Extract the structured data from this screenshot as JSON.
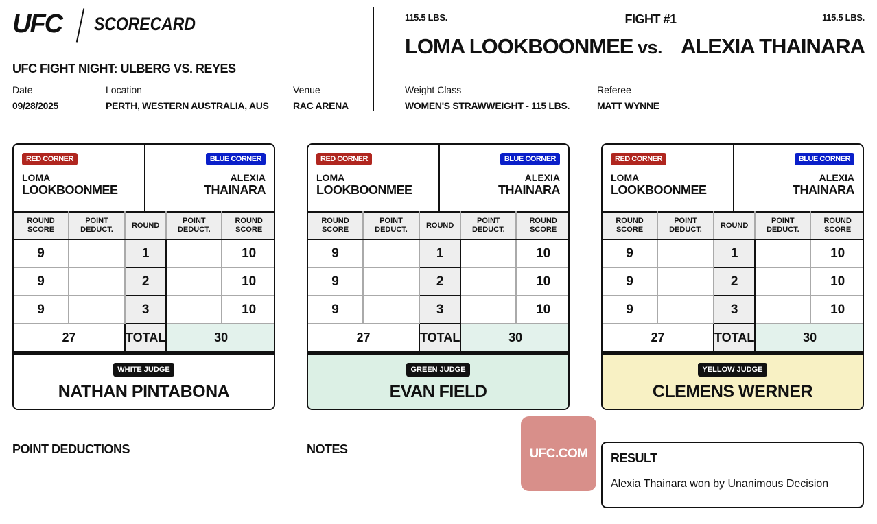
{
  "header": {
    "logo": "UFC",
    "title": "SCORECARD",
    "event": "UFC FIGHT NIGHT: ULBERG VS. REYES",
    "date_label": "Date",
    "date": "09/28/2025",
    "location_label": "Location",
    "location": "PERTH, WESTERN AUSTRALIA, AUS",
    "venue_label": "Venue",
    "venue": "RAC ARENA"
  },
  "fight": {
    "number": "FIGHT #1",
    "red_weight": "115.5 LBS.",
    "blue_weight": "115.5 LBS.",
    "red_name": "LOMA LOOKBOONMEE",
    "vs": "vs.",
    "blue_name": "ALEXIA THAINARA",
    "weight_class_label": "Weight Class",
    "weight_class": "WOMEN'S STRAWWEIGHT - 115 LBS.",
    "referee_label": "Referee",
    "referee": "MATT WYNNE"
  },
  "colors": {
    "red": "#b0261f",
    "blue": "#0a1fc9",
    "winner_bg": "#e3f2ec",
    "green_judge": "#dcf0e5",
    "yellow_judge": "#f8f1c4",
    "ufc_badge": "#d88f8a"
  },
  "labels": {
    "red_corner": "RED CORNER",
    "blue_corner": "BLUE CORNER",
    "red_first": "LOMA",
    "red_last": "LOOKBOONMEE",
    "blue_first": "ALEXIA",
    "blue_last": "THAINARA",
    "round_score": "ROUND SCORE",
    "point_deduct": "POINT DEDUCT.",
    "round": "ROUND",
    "total": "TOTAL"
  },
  "cards": [
    {
      "judge_label": "WHITE JUDGE",
      "judge": "NATHAN PINTABONA",
      "rounds": [
        {
          "n": "1",
          "red": "9",
          "blue": "10"
        },
        {
          "n": "2",
          "red": "9",
          "blue": "10"
        },
        {
          "n": "3",
          "red": "9",
          "blue": "10"
        }
      ],
      "red_total": "27",
      "blue_total": "30"
    },
    {
      "judge_label": "GREEN JUDGE",
      "judge": "EVAN FIELD",
      "rounds": [
        {
          "n": "1",
          "red": "9",
          "blue": "10"
        },
        {
          "n": "2",
          "red": "9",
          "blue": "10"
        },
        {
          "n": "3",
          "red": "9",
          "blue": "10"
        }
      ],
      "red_total": "27",
      "blue_total": "30"
    },
    {
      "judge_label": "YELLOW JUDGE",
      "judge": "CLEMENS WERNER",
      "rounds": [
        {
          "n": "1",
          "red": "9",
          "blue": "10"
        },
        {
          "n": "2",
          "red": "9",
          "blue": "10"
        },
        {
          "n": "3",
          "red": "9",
          "blue": "10"
        }
      ],
      "red_total": "27",
      "blue_total": "30"
    }
  ],
  "footer": {
    "point_deductions": "POINT DEDUCTIONS",
    "notes": "NOTES",
    "ufc_link": "UFC.COM",
    "result_label": "RESULT",
    "result": "Alexia Thainara won by Unanimous Decision"
  }
}
